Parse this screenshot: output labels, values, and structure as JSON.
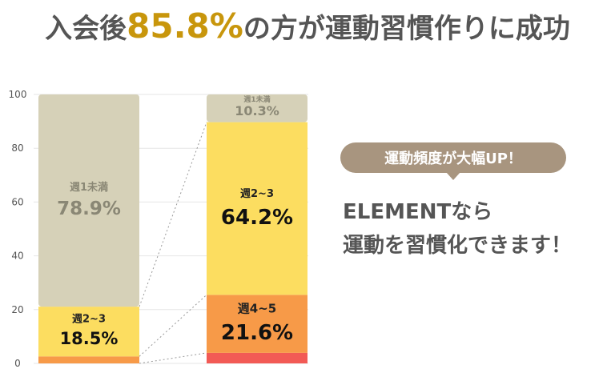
{
  "headline": {
    "prefix": "入会後",
    "highlight": "85.8%",
    "suffix": "の方が運動習慣作りに成功"
  },
  "colors": {
    "grey": "#D6D1B8",
    "yellow": "#FCDD60",
    "orange": "#F79A48",
    "red": "#F25A55",
    "accent": "#C8960C",
    "badge": "#A8957F"
  },
  "chart_data": {
    "type": "bar",
    "stacked": true,
    "ylim": [
      0,
      100
    ],
    "yticks": [
      0,
      20,
      40,
      60,
      80,
      100
    ],
    "grid": true,
    "bars": [
      {
        "segments": [
          {
            "key": "red",
            "value": 0.0,
            "label": "",
            "pct": ""
          },
          {
            "key": "orange",
            "value": 2.6,
            "label": "",
            "pct": ""
          },
          {
            "key": "yellow",
            "value": 18.5,
            "label": "週2~3",
            "pct": "18.5%"
          },
          {
            "key": "grey",
            "value": 78.9,
            "label": "週1未満",
            "pct": "78.9%"
          }
        ]
      },
      {
        "segments": [
          {
            "key": "red",
            "value": 3.9,
            "label": "",
            "pct": ""
          },
          {
            "key": "orange",
            "value": 21.6,
            "label": "週4~5",
            "pct": "21.6%"
          },
          {
            "key": "yellow",
            "value": 64.2,
            "label": "週2~3",
            "pct": "64.2%"
          },
          {
            "key": "grey",
            "value": 10.3,
            "label": "週1未満",
            "pct": "10.3%"
          }
        ]
      }
    ]
  },
  "badge": {
    "text": "運動頻度が大幅UP！"
  },
  "message": {
    "line1": "ELEMENTなら",
    "line2": "運動を習慣化できます！"
  }
}
